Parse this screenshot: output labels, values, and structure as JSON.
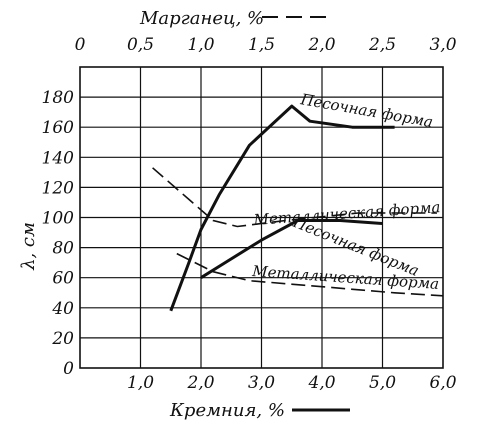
{
  "chart_data": {
    "type": "line",
    "title": "",
    "ylabel": "λ, см",
    "top_axis": {
      "label": "Марганец, %",
      "line_style": "dashed",
      "lim": [
        0,
        3.0
      ],
      "ticks": [
        "0",
        "0,5",
        "1,0",
        "1,5",
        "2,0",
        "2,5",
        "3,0"
      ]
    },
    "bottom_axis": {
      "label": "Кремния, %",
      "line_style": "solid",
      "lim": [
        0,
        6.0
      ],
      "ticks": [
        "1,0",
        "2,0",
        "3,0",
        "4,0",
        "5,0",
        "6,0"
      ]
    },
    "left_axis": {
      "lim": [
        0,
        200
      ],
      "ticks": [
        "180",
        "160",
        "140",
        "120",
        "100",
        "80",
        "60",
        "40",
        "20",
        "0"
      ]
    },
    "grid": true,
    "series": [
      {
        "name": "Песочная форма",
        "axis": "silicon",
        "style": "solid",
        "points": [
          [
            1.5,
            38
          ],
          [
            1.8,
            70
          ],
          [
            2.0,
            92
          ],
          [
            2.3,
            115
          ],
          [
            2.8,
            148
          ],
          [
            3.5,
            174
          ],
          [
            3.8,
            164
          ],
          [
            4.5,
            160
          ],
          [
            5.2,
            160
          ]
        ]
      },
      {
        "name": "Металлическая форма",
        "axis": "silicon",
        "style": "solid",
        "points": [
          [
            2.0,
            60
          ],
          [
            2.4,
            70
          ],
          [
            3.0,
            85
          ],
          [
            3.6,
            98
          ],
          [
            4.3,
            98
          ],
          [
            5.0,
            96
          ]
        ]
      },
      {
        "name": "Металлическая форма",
        "axis": "manganese",
        "style": "dashed",
        "points": [
          [
            0.6,
            133
          ],
          [
            0.9,
            112
          ],
          [
            1.1,
            98
          ],
          [
            1.3,
            94
          ],
          [
            1.7,
            98
          ],
          [
            2.3,
            103
          ],
          [
            2.95,
            103
          ]
        ]
      },
      {
        "name": "Песочная форма",
        "axis": "manganese",
        "style": "dashed",
        "points": [
          [
            0.8,
            76
          ],
          [
            1.1,
            64
          ],
          [
            1.4,
            58
          ],
          [
            2.0,
            54
          ],
          [
            2.6,
            50
          ],
          [
            3.0,
            48
          ]
        ]
      }
    ],
    "labels": [
      "Песочная форма",
      "Металлическая форма",
      "Песочная форма",
      "Металлическая форма"
    ]
  }
}
